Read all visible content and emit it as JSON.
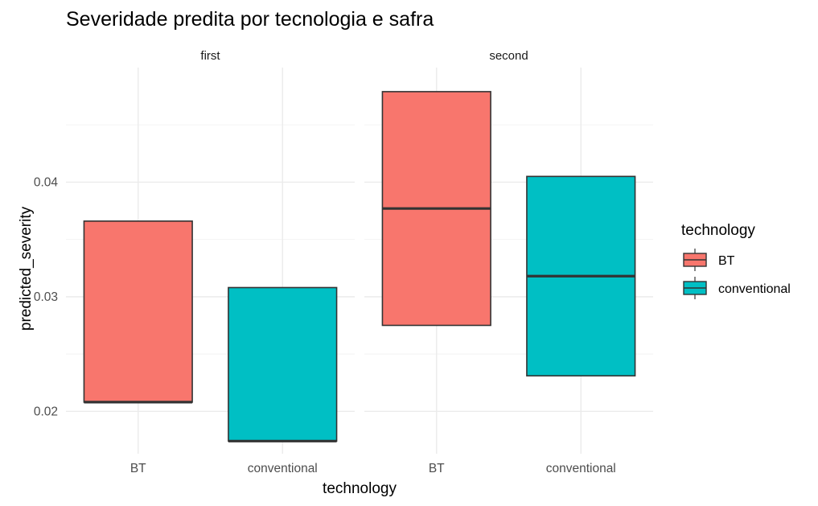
{
  "chart_data": {
    "type": "boxplot",
    "title": "Severidade predita por tecnologia e safra",
    "xlabel": "technology",
    "ylabel": "predicted_severity",
    "ylim": [
      0.0163,
      0.05
    ],
    "y_ticks": [
      0.02,
      0.03,
      0.04
    ],
    "y_tick_labels": [
      "0.02",
      "0.03",
      "0.04"
    ],
    "categories": [
      "BT",
      "conventional"
    ],
    "legend": {
      "title": "technology",
      "position": "right",
      "entries": [
        "BT",
        "conventional"
      ]
    },
    "colors": {
      "BT": "#F8766D",
      "conventional": "#00BFC4",
      "outline": "#333333"
    },
    "grid": true,
    "facets": [
      {
        "label": "first",
        "boxes": [
          {
            "category": "BT",
            "lower": 0.0208,
            "median": 0.0208,
            "upper": 0.0366
          },
          {
            "category": "conventional",
            "lower": 0.0174,
            "median": 0.0174,
            "upper": 0.0308
          }
        ]
      },
      {
        "label": "second",
        "boxes": [
          {
            "category": "BT",
            "lower": 0.0275,
            "median": 0.0377,
            "upper": 0.0479
          },
          {
            "category": "conventional",
            "lower": 0.0231,
            "median": 0.0318,
            "upper": 0.0405
          }
        ]
      }
    ]
  }
}
